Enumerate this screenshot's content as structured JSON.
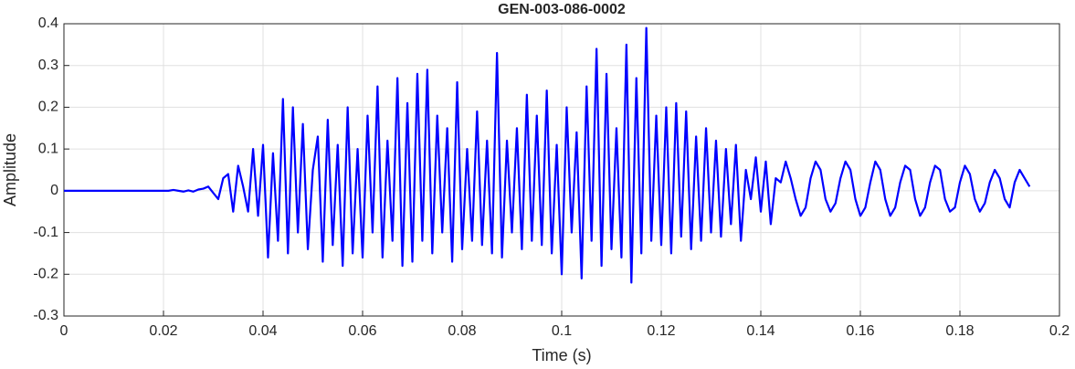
{
  "chart_data": {
    "type": "line",
    "title": "GEN-003-086-0002",
    "xlabel": "Time (s)",
    "ylabel": "Amplitude",
    "color": "#0000ff",
    "grid": true,
    "xlim": [
      0,
      0.2
    ],
    "ylim": [
      -0.3,
      0.4
    ],
    "xticks": [
      0,
      0.02,
      0.04,
      0.06,
      0.08,
      0.1,
      0.12,
      0.14,
      0.16,
      0.18,
      0.2
    ],
    "yticks": [
      -0.3,
      -0.2,
      -0.1,
      0,
      0.1,
      0.2,
      0.3,
      0.4
    ],
    "x": [
      0,
      0.001,
      0.002,
      0.003,
      0.004,
      0.005,
      0.006,
      0.007,
      0.008,
      0.009,
      0.01,
      0.011,
      0.012,
      0.013,
      0.014,
      0.015,
      0.016,
      0.017,
      0.018,
      0.019,
      0.02,
      0.021,
      0.022,
      0.023,
      0.024,
      0.025,
      0.026,
      0.027,
      0.028,
      0.029,
      0.03,
      0.031,
      0.032,
      0.033,
      0.034,
      0.035,
      0.036,
      0.037,
      0.038,
      0.039,
      0.04,
      0.041,
      0.042,
      0.043,
      0.044,
      0.045,
      0.046,
      0.047,
      0.048,
      0.049,
      0.05,
      0.051,
      0.052,
      0.053,
      0.054,
      0.055,
      0.056,
      0.057,
      0.058,
      0.059,
      0.06,
      0.061,
      0.062,
      0.063,
      0.064,
      0.065,
      0.066,
      0.067,
      0.068,
      0.069,
      0.07,
      0.071,
      0.072,
      0.073,
      0.074,
      0.075,
      0.076,
      0.077,
      0.078,
      0.079,
      0.08,
      0.081,
      0.082,
      0.083,
      0.084,
      0.085,
      0.086,
      0.087,
      0.088,
      0.089,
      0.09,
      0.091,
      0.092,
      0.093,
      0.094,
      0.095,
      0.096,
      0.097,
      0.098,
      0.099,
      0.1,
      0.101,
      0.102,
      0.103,
      0.104,
      0.105,
      0.106,
      0.107,
      0.108,
      0.109,
      0.11,
      0.111,
      0.112,
      0.113,
      0.114,
      0.115,
      0.116,
      0.117,
      0.118,
      0.119,
      0.12,
      0.121,
      0.122,
      0.123,
      0.124,
      0.125,
      0.126,
      0.127,
      0.128,
      0.129,
      0.13,
      0.131,
      0.132,
      0.133,
      0.134,
      0.135,
      0.136,
      0.137,
      0.138,
      0.139,
      0.14,
      0.141,
      0.142,
      0.143,
      0.144,
      0.145,
      0.146,
      0.147,
      0.148,
      0.149,
      0.15,
      0.151,
      0.152,
      0.153,
      0.154,
      0.155,
      0.156,
      0.157,
      0.158,
      0.159,
      0.16,
      0.161,
      0.162,
      0.163,
      0.164,
      0.165,
      0.166,
      0.167,
      0.168,
      0.169,
      0.17,
      0.171,
      0.172,
      0.173,
      0.174,
      0.175,
      0.176,
      0.177,
      0.178,
      0.179,
      0.18,
      0.181,
      0.182,
      0.183,
      0.184,
      0.185,
      0.186,
      0.187,
      0.188,
      0.189,
      0.19,
      0.191,
      0.192,
      0.193,
      0.194
    ],
    "values": [
      0,
      0,
      0,
      0,
      0,
      0,
      0,
      0,
      0,
      0,
      0,
      0,
      0,
      0,
      0,
      0,
      0,
      0,
      0,
      0,
      0,
      0,
      0.002,
      0,
      -0.002,
      0.001,
      -0.002,
      0.003,
      0.005,
      0.01,
      -0.005,
      -0.02,
      0.03,
      0.04,
      -0.05,
      0.06,
      0.01,
      -0.05,
      0.1,
      -0.06,
      0.11,
      -0.16,
      0.09,
      -0.12,
      0.22,
      -0.15,
      0.2,
      -0.1,
      0.16,
      -0.14,
      0.05,
      0.13,
      -0.17,
      0.17,
      -0.13,
      0.11,
      -0.18,
      0.2,
      -0.15,
      0.1,
      -0.16,
      0.18,
      -0.1,
      0.25,
      -0.16,
      0.12,
      -0.12,
      0.27,
      -0.18,
      0.21,
      -0.17,
      0.28,
      -0.12,
      0.29,
      -0.15,
      0.18,
      -0.1,
      0.15,
      -0.17,
      0.26,
      -0.14,
      0.1,
      -0.12,
      0.19,
      -0.13,
      0.12,
      -0.15,
      0.33,
      -0.16,
      0.12,
      -0.1,
      0.15,
      -0.14,
      0.23,
      -0.12,
      0.18,
      -0.13,
      0.24,
      -0.15,
      0.11,
      -0.2,
      0.2,
      -0.1,
      0.14,
      -0.21,
      0.25,
      -0.12,
      0.34,
      -0.18,
      0.28,
      -0.14,
      0.15,
      -0.16,
      0.35,
      -0.22,
      0.27,
      -0.15,
      0.39,
      -0.12,
      0.18,
      -0.13,
      0.2,
      -0.15,
      0.21,
      -0.11,
      0.19,
      -0.14,
      0.13,
      -0.12,
      0.15,
      -0.1,
      0.12,
      -0.11,
      0.1,
      -0.08,
      0.11,
      -0.12,
      0.05,
      -0.02,
      0.08,
      -0.05,
      0.07,
      -0.08,
      0.03,
      0.02,
      0.07,
      0.03,
      -0.02,
      -0.06,
      -0.04,
      0.03,
      0.07,
      0.05,
      -0.02,
      -0.05,
      -0.03,
      0.03,
      0.07,
      0.05,
      -0.02,
      -0.06,
      -0.04,
      0.02,
      0.07,
      0.05,
      -0.02,
      -0.06,
      -0.04,
      0.02,
      0.06,
      0.05,
      -0.02,
      -0.06,
      -0.04,
      0.02,
      0.06,
      0.05,
      -0.02,
      -0.05,
      -0.04,
      0.02,
      0.06,
      0.04,
      -0.02,
      -0.05,
      -0.03,
      0.02,
      0.05,
      0.03,
      -0.02,
      -0.04,
      0.02,
      0.05,
      0.03,
      0.01
    ]
  }
}
